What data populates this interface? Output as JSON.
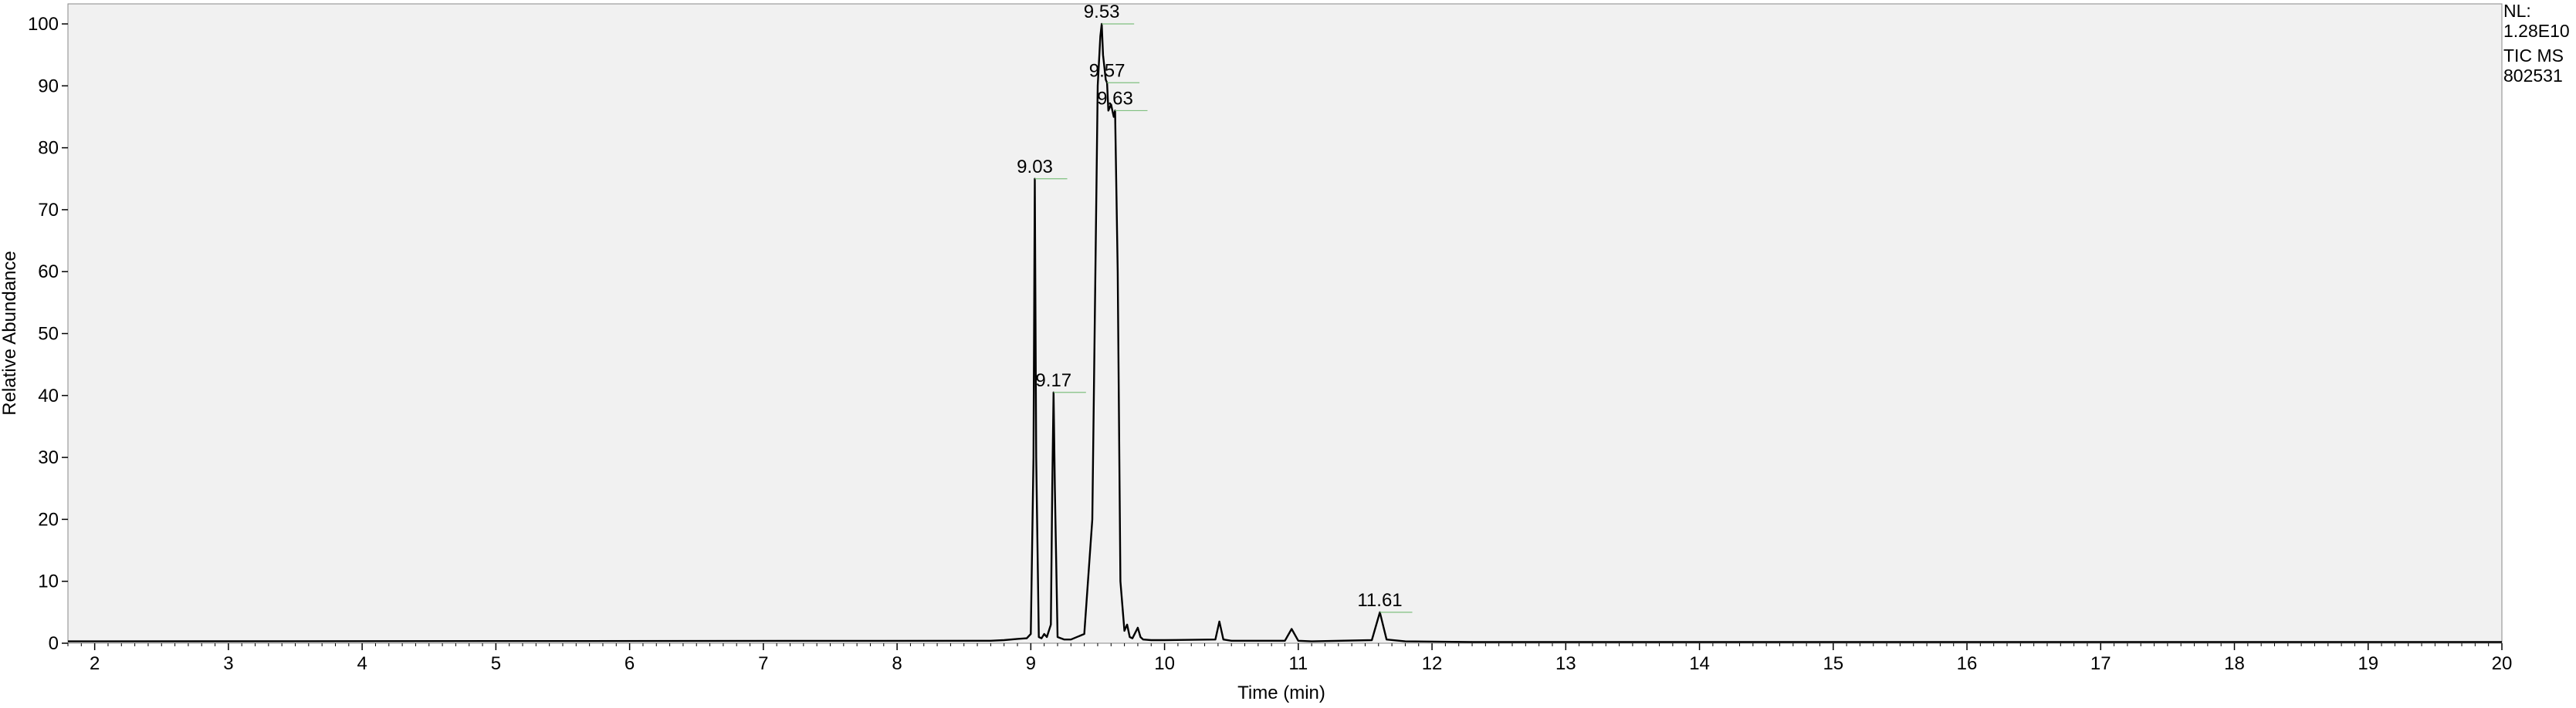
{
  "chart_data": {
    "type": "line",
    "xlabel": "Time (min)",
    "ylabel": "Relative Abundance",
    "xlim": [
      1.8,
      20
    ],
    "ylim": [
      0,
      100
    ],
    "x_ticks": [
      2,
      3,
      4,
      5,
      6,
      7,
      8,
      9,
      10,
      11,
      12,
      13,
      14,
      15,
      16,
      17,
      18,
      19,
      20
    ],
    "y_ticks": [
      0,
      10,
      20,
      30,
      40,
      50,
      60,
      70,
      80,
      90,
      100
    ],
    "grid": false,
    "info": [
      "NL:",
      "1.28E10",
      "TIC  MS",
      "802531"
    ],
    "peak_labels": [
      {
        "x": 9.03,
        "y": 75,
        "label": "9.03"
      },
      {
        "x": 9.17,
        "y": 40.5,
        "label": "9.17"
      },
      {
        "x": 9.53,
        "y": 100,
        "label": "9.53"
      },
      {
        "x": 9.57,
        "y": 90.5,
        "label": "9.57"
      },
      {
        "x": 9.63,
        "y": 86,
        "label": "9.63"
      },
      {
        "x": 11.61,
        "y": 5,
        "label": "11.61"
      }
    ],
    "series": [
      {
        "x": [
          1.8,
          8.7,
          8.8,
          8.9,
          8.97,
          9.0,
          9.02,
          9.03,
          9.04,
          9.06,
          9.08,
          9.1,
          9.12,
          9.15,
          9.16,
          9.17,
          9.18,
          9.2,
          9.25,
          9.3,
          9.4,
          9.46,
          9.5,
          9.52,
          9.53,
          9.54,
          9.56,
          9.57,
          9.58,
          9.6,
          9.61,
          9.62,
          9.63,
          9.65,
          9.67,
          9.7,
          9.72,
          9.74,
          9.76,
          9.8,
          9.82,
          9.84,
          9.9,
          10.0,
          10.38,
          10.41,
          10.44,
          10.5,
          10.9,
          10.95,
          11.0,
          11.1,
          11.55,
          11.61,
          11.66,
          11.8,
          12.3,
          20.0
        ],
        "y": [
          0.3,
          0.4,
          0.5,
          0.7,
          0.8,
          1.5,
          30,
          75,
          30,
          1.0,
          0.8,
          1.5,
          1.0,
          3.0,
          25,
          40.5,
          25,
          1.0,
          0.6,
          0.6,
          1.5,
          20,
          90,
          98,
          100,
          95,
          91,
          90.5,
          86,
          87,
          86,
          85,
          86,
          60,
          10,
          2.0,
          3.0,
          1.0,
          0.8,
          2.5,
          1.0,
          0.6,
          0.5,
          0.5,
          0.6,
          3.5,
          0.6,
          0.4,
          0.4,
          2.3,
          0.4,
          0.3,
          0.5,
          5.0,
          0.6,
          0.3,
          0.2,
          0.2
        ]
      }
    ]
  }
}
